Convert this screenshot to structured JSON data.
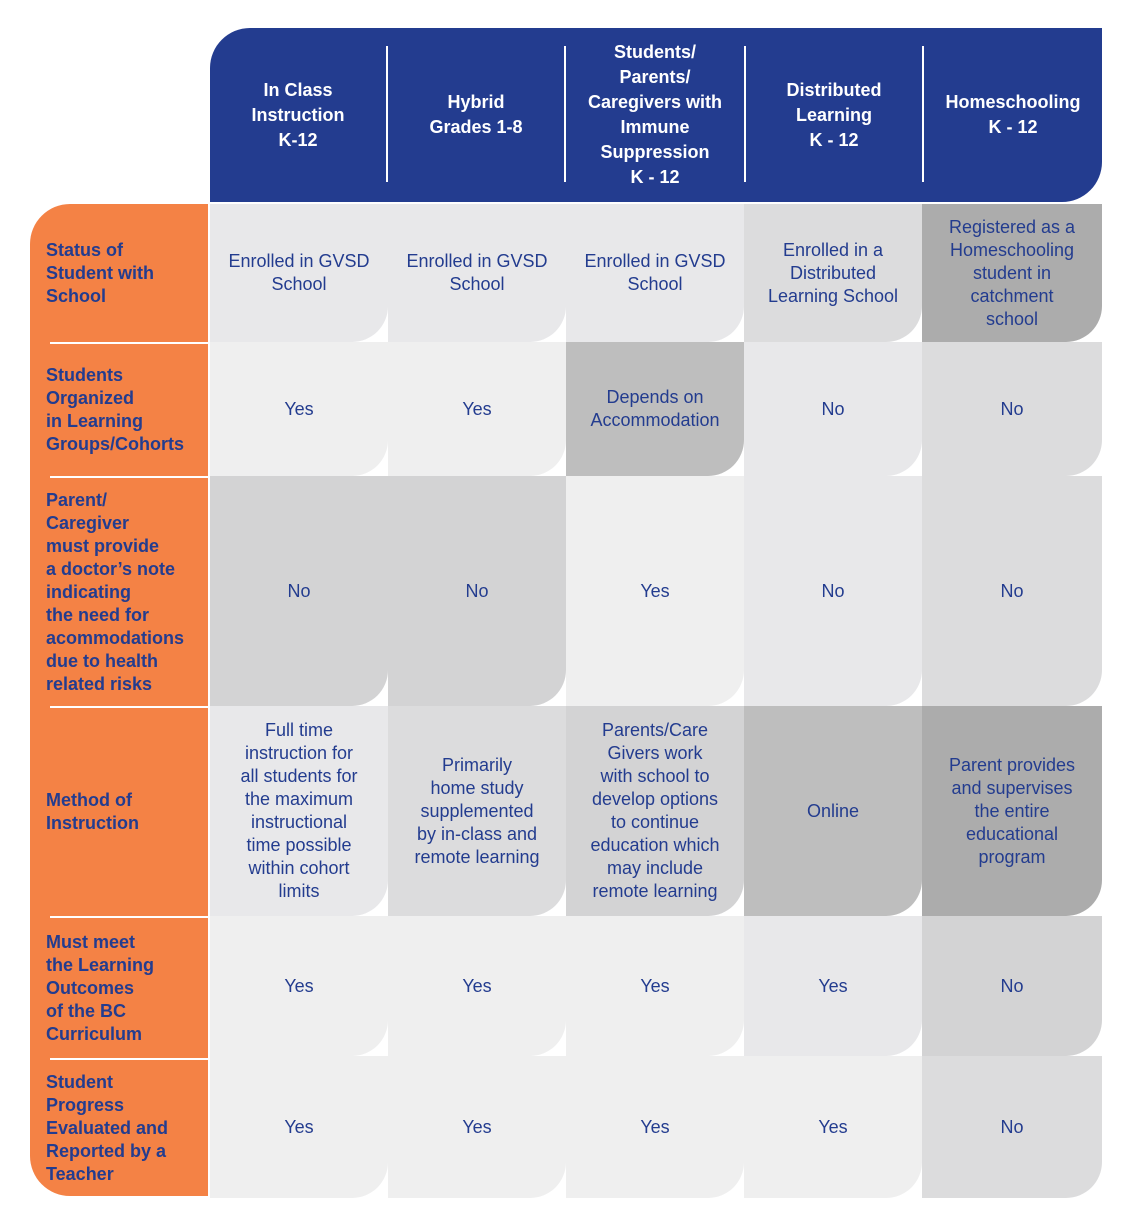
{
  "columns": [
    "In Class\nInstruction\nK-12",
    "Hybrid\nGrades 1-8",
    "Students/\nParents/\nCaregivers with\nImmune\nSuppression\nK - 12",
    "Distributed\nLearning\nK - 12",
    "Homeschooling\nK - 12"
  ],
  "rows": [
    {
      "label": "Status of\nStudent with\nSchool",
      "cells": [
        "Enrolled in GVSD\nSchool",
        "Enrolled in GVSD\nSchool",
        "Enrolled in GVSD\nSchool",
        "Enrolled in a\nDistributed\nLearning School",
        "Registered as a\nHomeschooling\nstudent in\ncatchment\nschool"
      ]
    },
    {
      "label": "Students\nOrganized\nin Learning\nGroups/Cohorts",
      "cells": [
        "Yes",
        "Yes",
        "Depends on\nAccommodation",
        "No",
        "No"
      ]
    },
    {
      "label": "Parent/\nCaregiver\nmust provide\na doctor’s note\nindicating\nthe need for\nacommodations\ndue to health\nrelated risks",
      "cells": [
        "No",
        "No",
        "Yes",
        "No",
        "No"
      ]
    },
    {
      "label": "Method of\nInstruction",
      "cells": [
        "Full time\ninstruction for\nall students for\nthe maximum\ninstructional\ntime possible\nwithin cohort\nlimits",
        "Primarily\nhome study\nsupplemented\nby in-class and\nremote learning",
        "Parents/Care\nGivers work\nwith school to\ndevelop options\nto continue\neducation which\nmay include\nremote learning",
        "Online",
        "Parent provides\nand supervises\nthe entire\neducational\nprogram"
      ]
    },
    {
      "label": "Must meet\nthe Learning\nOutcomes\nof the BC\nCurriculum",
      "cells": [
        "Yes",
        "Yes",
        "Yes",
        "Yes",
        "No"
      ]
    },
    {
      "label": "Student\nProgress\nEvaluated  and\nReported by a\nTeacher",
      "cells": [
        "Yes",
        "Yes",
        "Yes",
        "Yes",
        "No"
      ]
    }
  ],
  "colors": {
    "header": "#233c8f",
    "side": "#f48245",
    "text": "#233c8f"
  }
}
